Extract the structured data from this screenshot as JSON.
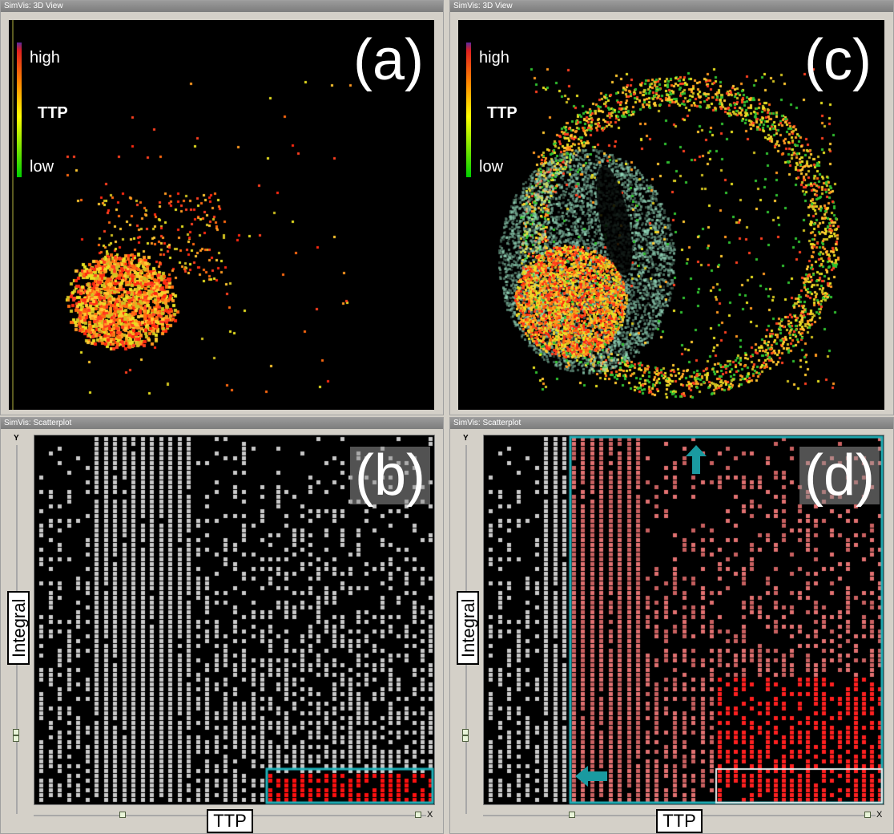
{
  "windows": {
    "a": {
      "title": "SimVis: 3D View",
      "label": "(a)"
    },
    "b": {
      "title": "SimVis: Scatterplot",
      "label": "(b)"
    },
    "c": {
      "title": "SimVis: 3D View",
      "label": "(c)"
    },
    "d": {
      "title": "SimVis: Scatterplot",
      "label": "(d)"
    }
  },
  "legend": {
    "high": "high",
    "title": "TTP",
    "low": "low"
  },
  "scatter": {
    "y_letter": "Y",
    "x_letter": "X",
    "y_axis_label": "Integral",
    "x_axis_label": "TTP"
  },
  "colors": {
    "selection": "#20b0b8",
    "highlight": "#ff2020",
    "context": "#c8c8c8",
    "arrow": "#1a9aa0"
  },
  "icons": {
    "y_slider_handle": "slider-handle-icon",
    "x_slider_handle": "slider-handle-icon",
    "close": "close-icon",
    "up_arrow": "up-arrow-icon",
    "left_arrow": "left-arrow-icon"
  }
}
